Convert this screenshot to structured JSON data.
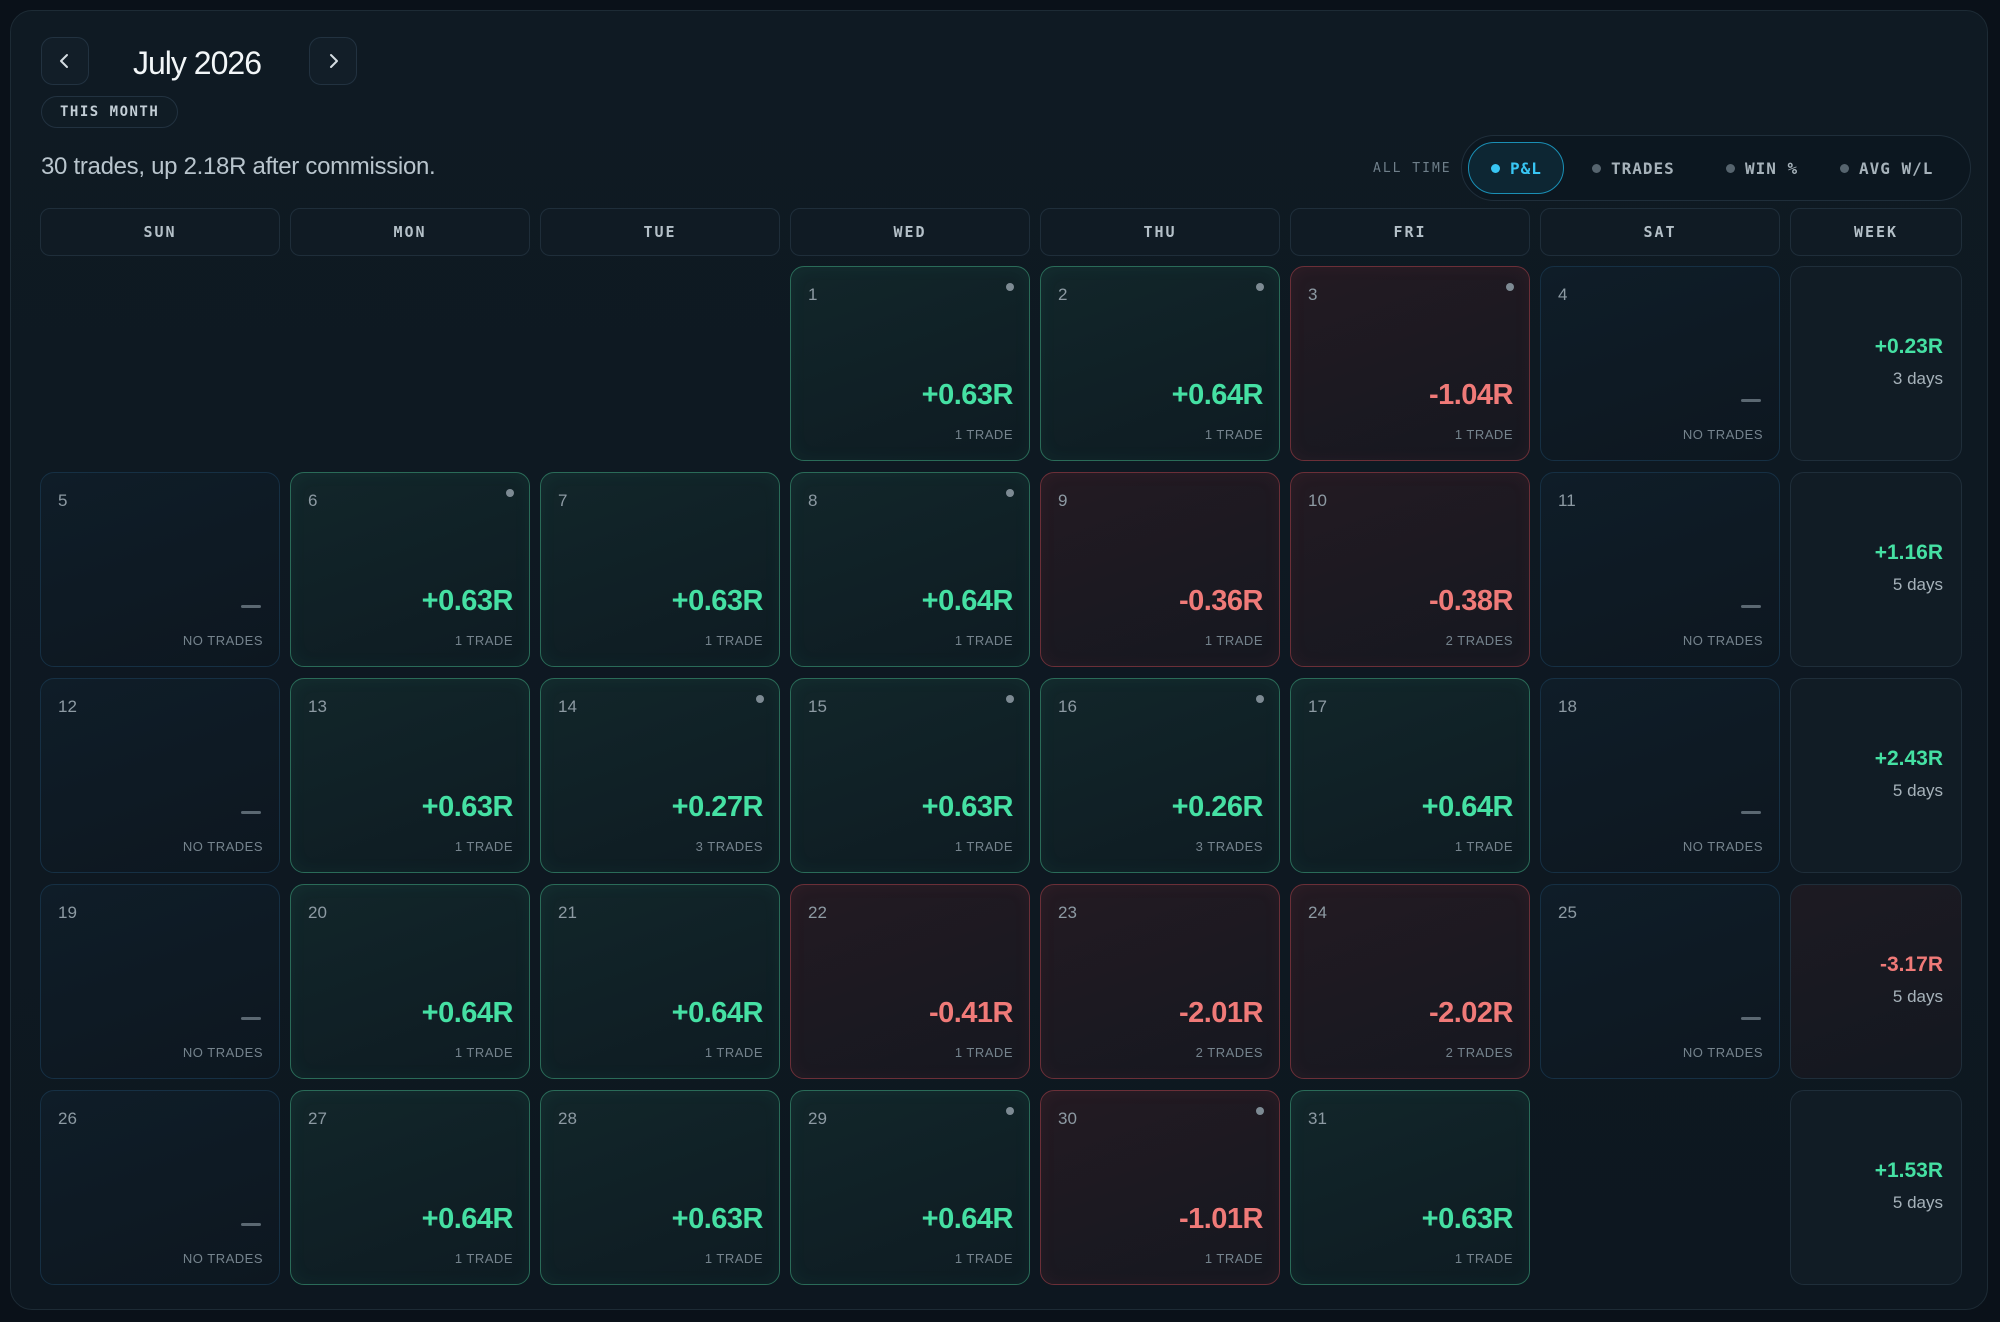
{
  "header": {
    "month_title": "July 2026",
    "period_badge": "THIS MONTH",
    "summary": "30 trades, up 2.18R after commission.",
    "range_label": "ALL TIME"
  },
  "metric_toggle": {
    "options": [
      "P&L",
      "TRADES",
      "WIN %",
      "AVG W/L"
    ],
    "selected": "P&L",
    "active_color": "#38c6f4"
  },
  "icons": {
    "prev": "chevron-left-icon",
    "next": "chevron-right-icon"
  },
  "colors": {
    "positive": "#45e0a3",
    "negative": "#f07a78"
  },
  "weekday_headers": [
    "SUN",
    "MON",
    "TUE",
    "WED",
    "THU",
    "FRI",
    "SAT",
    "WEEK"
  ],
  "weeks": [
    {
      "days": [
        null,
        null,
        null,
        {
          "day": "1",
          "pnl": "+0.63R",
          "trades": "1 TRADE",
          "dot": true
        },
        {
          "day": "2",
          "pnl": "+0.64R",
          "trades": "1 TRADE",
          "dot": true
        },
        {
          "day": "3",
          "pnl": "-1.04R",
          "trades": "1 TRADE",
          "dot": true
        },
        {
          "day": "4",
          "pnl": "—",
          "trades": "NO TRADES",
          "dot": false
        }
      ],
      "week_total": "+0.23R",
      "week_days": "3 days"
    },
    {
      "days": [
        {
          "day": "5",
          "pnl": "—",
          "trades": "NO TRADES",
          "dot": false
        },
        {
          "day": "6",
          "pnl": "+0.63R",
          "trades": "1 TRADE",
          "dot": true
        },
        {
          "day": "7",
          "pnl": "+0.63R",
          "trades": "1 TRADE",
          "dot": false
        },
        {
          "day": "8",
          "pnl": "+0.64R",
          "trades": "1 TRADE",
          "dot": true
        },
        {
          "day": "9",
          "pnl": "-0.36R",
          "trades": "1 TRADE",
          "dot": false
        },
        {
          "day": "10",
          "pnl": "-0.38R",
          "trades": "2 TRADES",
          "dot": false
        },
        {
          "day": "11",
          "pnl": "—",
          "trades": "NO TRADES",
          "dot": false
        }
      ],
      "week_total": "+1.16R",
      "week_days": "5 days"
    },
    {
      "days": [
        {
          "day": "12",
          "pnl": "—",
          "trades": "NO TRADES",
          "dot": false
        },
        {
          "day": "13",
          "pnl": "+0.63R",
          "trades": "1 TRADE",
          "dot": false
        },
        {
          "day": "14",
          "pnl": "+0.27R",
          "trades": "3 TRADES",
          "dot": true
        },
        {
          "day": "15",
          "pnl": "+0.63R",
          "trades": "1 TRADE",
          "dot": true
        },
        {
          "day": "16",
          "pnl": "+0.26R",
          "trades": "3 TRADES",
          "dot": true
        },
        {
          "day": "17",
          "pnl": "+0.64R",
          "trades": "1 TRADE",
          "dot": false
        },
        {
          "day": "18",
          "pnl": "—",
          "trades": "NO TRADES",
          "dot": false
        }
      ],
      "week_total": "+2.43R",
      "week_days": "5 days"
    },
    {
      "days": [
        {
          "day": "19",
          "pnl": "—",
          "trades": "NO TRADES",
          "dot": false
        },
        {
          "day": "20",
          "pnl": "+0.64R",
          "trades": "1 TRADE",
          "dot": false
        },
        {
          "day": "21",
          "pnl": "+0.64R",
          "trades": "1 TRADE",
          "dot": false
        },
        {
          "day": "22",
          "pnl": "-0.41R",
          "trades": "1 TRADE",
          "dot": false
        },
        {
          "day": "23",
          "pnl": "-2.01R",
          "trades": "2 TRADES",
          "dot": false
        },
        {
          "day": "24",
          "pnl": "-2.02R",
          "trades": "2 TRADES",
          "dot": false
        },
        {
          "day": "25",
          "pnl": "—",
          "trades": "NO TRADES",
          "dot": false
        }
      ],
      "week_total": "-3.17R",
      "week_days": "5 days"
    },
    {
      "days": [
        {
          "day": "26",
          "pnl": "—",
          "trades": "NO TRADES",
          "dot": false
        },
        {
          "day": "27",
          "pnl": "+0.64R",
          "trades": "1 TRADE",
          "dot": false
        },
        {
          "day": "28",
          "pnl": "+0.63R",
          "trades": "1 TRADE",
          "dot": false
        },
        {
          "day": "29",
          "pnl": "+0.64R",
          "trades": "1 TRADE",
          "dot": true
        },
        {
          "day": "30",
          "pnl": "-1.01R",
          "trades": "1 TRADE",
          "dot": true
        },
        {
          "day": "31",
          "pnl": "+0.63R",
          "trades": "1 TRADE",
          "dot": false
        },
        null
      ],
      "week_total": "+1.53R",
      "week_days": "5 days"
    }
  ]
}
